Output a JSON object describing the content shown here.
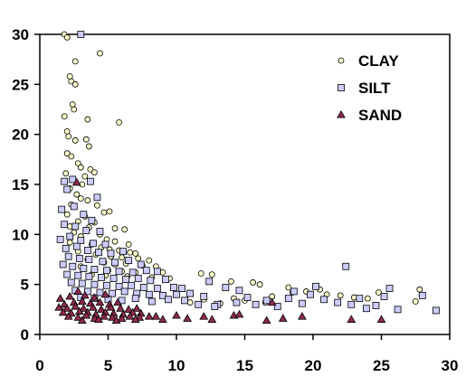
{
  "chart_data": {
    "type": "scatter",
    "title": "",
    "xlabel": "",
    "ylabel": "",
    "xlim": [
      0,
      30
    ],
    "ylim": [
      0,
      30
    ],
    "x_ticks": [
      "0",
      "5",
      "10",
      "15",
      "20",
      "25",
      "30"
    ],
    "y_ticks": [
      "0",
      "5",
      "10",
      "15",
      "20",
      "25",
      "30"
    ],
    "grid": false,
    "legend_position": "top-right",
    "series": [
      {
        "name": "CLAY",
        "marker": "circle",
        "color": "#ffffcc",
        "stroke": "#000000",
        "points": [
          [
            1.8,
            30
          ],
          [
            2.0,
            29.7
          ],
          [
            2.6,
            27.3
          ],
          [
            4.4,
            28.1
          ],
          [
            2.2,
            25.8
          ],
          [
            2.3,
            25.3
          ],
          [
            2.6,
            25.0
          ],
          [
            2.4,
            23.0
          ],
          [
            2.5,
            22.5
          ],
          [
            1.8,
            21.8
          ],
          [
            3.5,
            21.5
          ],
          [
            5.8,
            21.2
          ],
          [
            2.0,
            20.3
          ],
          [
            2.1,
            19.8
          ],
          [
            2.6,
            19.4
          ],
          [
            3.4,
            19.5
          ],
          [
            3.6,
            18.8
          ],
          [
            2.0,
            18.1
          ],
          [
            2.3,
            17.8
          ],
          [
            2.8,
            17.1
          ],
          [
            3.0,
            16.7
          ],
          [
            3.7,
            16.5
          ],
          [
            1.9,
            16.1
          ],
          [
            3.3,
            15.8
          ],
          [
            4.0,
            16.2
          ],
          [
            2.4,
            15.5
          ],
          [
            3.1,
            15.0
          ],
          [
            2.2,
            14.6
          ],
          [
            2.7,
            14.0
          ],
          [
            3.0,
            13.6
          ],
          [
            3.5,
            13.4
          ],
          [
            2.3,
            13.0
          ],
          [
            4.2,
            12.9
          ],
          [
            4.7,
            12.2
          ],
          [
            5.1,
            12.3
          ],
          [
            2.0,
            12.0
          ],
          [
            3.3,
            11.8
          ],
          [
            2.8,
            11.3
          ],
          [
            4.0,
            11.2
          ],
          [
            2.2,
            10.8
          ],
          [
            3.6,
            10.7
          ],
          [
            5.5,
            10.6
          ],
          [
            6.2,
            10.5
          ],
          [
            2.5,
            10.2
          ],
          [
            4.4,
            10.0
          ],
          [
            3.0,
            9.8
          ],
          [
            4.9,
            9.5
          ],
          [
            5.5,
            9.3
          ],
          [
            6.5,
            9.0
          ],
          [
            2.2,
            9.2
          ],
          [
            3.8,
            9.0
          ],
          [
            4.5,
            8.7
          ],
          [
            5.1,
            8.5
          ],
          [
            5.8,
            8.4
          ],
          [
            6.6,
            8.2
          ],
          [
            7.0,
            8.1
          ],
          [
            2.8,
            8.3
          ],
          [
            4.1,
            8.0
          ],
          [
            5.2,
            7.8
          ],
          [
            6.0,
            7.7
          ],
          [
            7.2,
            7.6
          ],
          [
            8.0,
            7.4
          ],
          [
            3.5,
            7.5
          ],
          [
            4.7,
            7.2
          ],
          [
            5.5,
            7.0
          ],
          [
            6.3,
            7.1
          ],
          [
            7.5,
            6.9
          ],
          [
            8.5,
            6.8
          ],
          [
            3.0,
            6.8
          ],
          [
            4.0,
            6.5
          ],
          [
            5.0,
            6.4
          ],
          [
            6.0,
            6.3
          ],
          [
            7.0,
            6.2
          ],
          [
            9.0,
            6.2
          ],
          [
            3.8,
            6.0
          ],
          [
            4.8,
            5.9
          ],
          [
            6.4,
            5.8
          ],
          [
            8.2,
            5.7
          ],
          [
            9.5,
            5.6
          ],
          [
            11.8,
            6.1
          ],
          [
            12.6,
            6.0
          ],
          [
            15.6,
            5.2
          ],
          [
            16.1,
            5.0
          ],
          [
            14.0,
            5.3
          ],
          [
            18.2,
            4.7
          ],
          [
            18.5,
            4.2
          ],
          [
            19.5,
            4.3
          ],
          [
            20.5,
            4.5
          ],
          [
            21.0,
            4.0
          ],
          [
            22.0,
            3.9
          ],
          [
            23.0,
            3.7
          ],
          [
            24.0,
            3.6
          ],
          [
            24.8,
            4.2
          ],
          [
            27.8,
            4.5
          ],
          [
            27.5,
            3.3
          ],
          [
            12.0,
            3.5
          ],
          [
            13.2,
            3.1
          ],
          [
            15.0,
            3.4
          ],
          [
            16.5,
            3.2
          ],
          [
            17.0,
            3.8
          ],
          [
            14.2,
            3.6
          ],
          [
            11.0,
            3.2
          ]
        ]
      },
      {
        "name": "SILT",
        "marker": "square",
        "color": "#ccccff",
        "stroke": "#000000",
        "points": [
          [
            3.0,
            30
          ],
          [
            1.8,
            15.3
          ],
          [
            2.0,
            14.5
          ],
          [
            2.4,
            15.5
          ],
          [
            3.7,
            15.3
          ],
          [
            4.2,
            13.7
          ],
          [
            1.6,
            12.5
          ],
          [
            2.5,
            12.8
          ],
          [
            3.2,
            12.0
          ],
          [
            3.8,
            11.4
          ],
          [
            1.8,
            11.0
          ],
          [
            2.6,
            10.8
          ],
          [
            3.4,
            10.4
          ],
          [
            4.4,
            10.3
          ],
          [
            1.5,
            9.5
          ],
          [
            2.2,
            9.8
          ],
          [
            3.0,
            9.4
          ],
          [
            3.9,
            9.1
          ],
          [
            4.8,
            9.0
          ],
          [
            1.9,
            8.6
          ],
          [
            2.7,
            8.8
          ],
          [
            3.5,
            8.4
          ],
          [
            4.3,
            8.2
          ],
          [
            5.2,
            8.1
          ],
          [
            6.1,
            8.3
          ],
          [
            2.1,
            7.8
          ],
          [
            2.9,
            7.6
          ],
          [
            3.6,
            7.5
          ],
          [
            4.6,
            7.3
          ],
          [
            5.5,
            7.2
          ],
          [
            6.5,
            7.4
          ],
          [
            7.4,
            7.0
          ],
          [
            1.7,
            7.0
          ],
          [
            2.4,
            6.8
          ],
          [
            3.2,
            6.6
          ],
          [
            4.0,
            6.5
          ],
          [
            4.9,
            6.4
          ],
          [
            5.8,
            6.3
          ],
          [
            6.8,
            6.2
          ],
          [
            7.8,
            6.4
          ],
          [
            8.6,
            6.3
          ],
          [
            2.0,
            6.0
          ],
          [
            2.8,
            5.9
          ],
          [
            3.6,
            5.8
          ],
          [
            4.5,
            5.7
          ],
          [
            5.4,
            5.6
          ],
          [
            6.3,
            5.5
          ],
          [
            7.2,
            5.6
          ],
          [
            8.1,
            5.4
          ],
          [
            9.2,
            5.5
          ],
          [
            2.3,
            5.2
          ],
          [
            3.1,
            5.1
          ],
          [
            4.0,
            5.0
          ],
          [
            4.9,
            4.9
          ],
          [
            5.8,
            4.8
          ],
          [
            6.7,
            4.9
          ],
          [
            7.6,
            4.7
          ],
          [
            8.6,
            4.6
          ],
          [
            9.8,
            4.7
          ],
          [
            10.4,
            4.6
          ],
          [
            2.6,
            4.4
          ],
          [
            3.5,
            4.3
          ],
          [
            4.4,
            4.2
          ],
          [
            5.3,
            4.1
          ],
          [
            6.2,
            4.3
          ],
          [
            7.1,
            4.1
          ],
          [
            8.0,
            4.0
          ],
          [
            9.0,
            3.9
          ],
          [
            10.0,
            4.0
          ],
          [
            11.0,
            4.1
          ],
          [
            3.0,
            3.7
          ],
          [
            4.0,
            3.6
          ],
          [
            5.0,
            3.5
          ],
          [
            6.0,
            3.4
          ],
          [
            7.0,
            3.6
          ],
          [
            8.2,
            3.3
          ],
          [
            9.4,
            3.5
          ],
          [
            10.6,
            3.4
          ],
          [
            12.4,
            5.3
          ],
          [
            13.6,
            4.7
          ],
          [
            14.6,
            4.4
          ],
          [
            15.2,
            3.7
          ],
          [
            12.0,
            3.8
          ],
          [
            13.0,
            3.0
          ],
          [
            14.4,
            3.2
          ],
          [
            15.8,
            3.0
          ],
          [
            16.6,
            3.4
          ],
          [
            17.4,
            2.8
          ],
          [
            18.2,
            3.6
          ],
          [
            18.6,
            4.3
          ],
          [
            19.2,
            3.1
          ],
          [
            19.8,
            4.0
          ],
          [
            20.2,
            4.8
          ],
          [
            20.8,
            3.5
          ],
          [
            21.8,
            3.2
          ],
          [
            22.4,
            6.8
          ],
          [
            22.8,
            3.0
          ],
          [
            23.4,
            3.6
          ],
          [
            23.9,
            2.6
          ],
          [
            24.6,
            2.9
          ],
          [
            25.2,
            3.8
          ],
          [
            25.6,
            4.6
          ],
          [
            26.2,
            2.5
          ],
          [
            28.0,
            3.9
          ],
          [
            29.0,
            2.4
          ],
          [
            11.6,
            3.0
          ],
          [
            12.8,
            2.8
          ]
        ]
      },
      {
        "name": "SAND",
        "marker": "triangle",
        "color": "#8b2a4e",
        "stroke": "#000000",
        "points": [
          [
            2.7,
            15.2
          ],
          [
            1.5,
            3.6
          ],
          [
            2.2,
            3.8
          ],
          [
            2.8,
            4.3
          ],
          [
            3.3,
            3.9
          ],
          [
            4.0,
            3.7
          ],
          [
            4.8,
            4.0
          ],
          [
            1.8,
            3.0
          ],
          [
            2.5,
            3.2
          ],
          [
            3.1,
            3.3
          ],
          [
            3.7,
            3.1
          ],
          [
            4.4,
            3.2
          ],
          [
            5.1,
            3.0
          ],
          [
            5.7,
            3.2
          ],
          [
            1.4,
            2.7
          ],
          [
            2.0,
            2.6
          ],
          [
            2.6,
            2.8
          ],
          [
            3.2,
            2.6
          ],
          [
            3.9,
            2.7
          ],
          [
            4.5,
            2.5
          ],
          [
            5.2,
            2.7
          ],
          [
            5.9,
            2.6
          ],
          [
            6.5,
            2.5
          ],
          [
            7.1,
            2.6
          ],
          [
            1.7,
            2.2
          ],
          [
            2.3,
            2.1
          ],
          [
            2.9,
            2.3
          ],
          [
            3.5,
            2.2
          ],
          [
            4.1,
            2.0
          ],
          [
            4.8,
            2.2
          ],
          [
            5.4,
            2.1
          ],
          [
            6.1,
            2.0
          ],
          [
            6.8,
            2.2
          ],
          [
            7.4,
            2.1
          ],
          [
            2.1,
            1.8
          ],
          [
            2.8,
            1.7
          ],
          [
            3.4,
            1.9
          ],
          [
            4.0,
            1.6
          ],
          [
            4.7,
            1.8
          ],
          [
            5.3,
            1.7
          ],
          [
            6.0,
            1.6
          ],
          [
            6.6,
            1.8
          ],
          [
            7.3,
            1.7
          ],
          [
            8.0,
            1.8
          ],
          [
            3.1,
            1.4
          ],
          [
            4.3,
            1.5
          ],
          [
            5.6,
            1.4
          ],
          [
            7.0,
            1.5
          ],
          [
            8.5,
            1.8
          ],
          [
            9.0,
            1.5
          ],
          [
            10.0,
            1.9
          ],
          [
            10.8,
            1.6
          ],
          [
            12.0,
            1.8
          ],
          [
            12.6,
            1.5
          ],
          [
            14.2,
            1.9
          ],
          [
            14.6,
            2.0
          ],
          [
            16.6,
            1.4
          ],
          [
            17.0,
            3.2
          ],
          [
            17.8,
            1.6
          ],
          [
            19.2,
            1.8
          ],
          [
            22.8,
            1.5
          ],
          [
            25.0,
            1.5
          ]
        ]
      }
    ]
  }
}
